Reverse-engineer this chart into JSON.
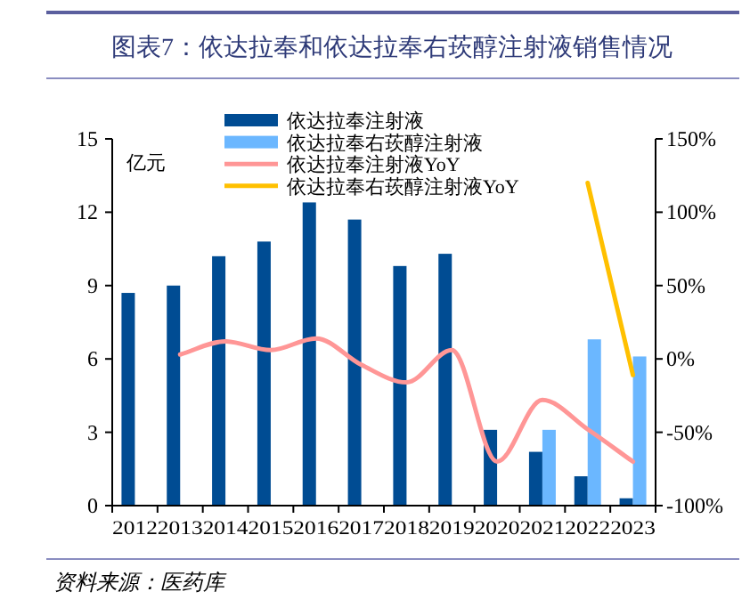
{
  "chart_data": {
    "type": "bar",
    "title": "图表7：依达拉奉和依达拉奉右莰醇注射液销售情况",
    "ylabel": "亿元",
    "annotations": [
      "资料来源：医药库"
    ],
    "categories": [
      "2012",
      "2013",
      "2014",
      "2015",
      "2016",
      "2017",
      "2018",
      "2019",
      "2020",
      "2021",
      "2022",
      "2023"
    ],
    "series": [
      {
        "name": "依达拉奉注射液",
        "color": "#004c93",
        "values": [
          8.7,
          9.0,
          10.2,
          10.8,
          12.4,
          11.7,
          9.8,
          10.3,
          3.1,
          2.2,
          1.2,
          0.3
        ]
      },
      {
        "name": "依达拉奉右莰醇注射液",
        "color": "#6bb7ff",
        "values": [
          null,
          null,
          null,
          null,
          null,
          null,
          null,
          null,
          null,
          3.1,
          6.8,
          6.1
        ]
      },
      {
        "name": "依达拉奉注射液YoY",
        "type": "line",
        "axis": "y2",
        "color": "#ff9696",
        "values": [
          null,
          3,
          12,
          6,
          14,
          -4,
          -16,
          6,
          -70,
          -28,
          -48,
          -70
        ]
      },
      {
        "name": "依达拉奉右莰醇注射液YoY",
        "type": "line",
        "axis": "y2",
        "color": "#ffc000",
        "values": [
          null,
          null,
          null,
          null,
          null,
          null,
          null,
          null,
          null,
          null,
          120,
          -11
        ]
      }
    ],
    "ylim": [
      0,
      15
    ],
    "yticks": [
      0,
      3,
      6,
      9,
      12,
      15
    ],
    "y2lim": [
      -100,
      150
    ],
    "y2ticks": [
      {
        "value": -100,
        "label": "-100%"
      },
      {
        "value": -50,
        "label": "-50%"
      },
      {
        "value": 0,
        "label": "0%"
      },
      {
        "value": 50,
        "label": "50%"
      },
      {
        "value": 100,
        "label": "100%"
      },
      {
        "value": 150,
        "label": "150%"
      }
    ],
    "legend": "top"
  }
}
